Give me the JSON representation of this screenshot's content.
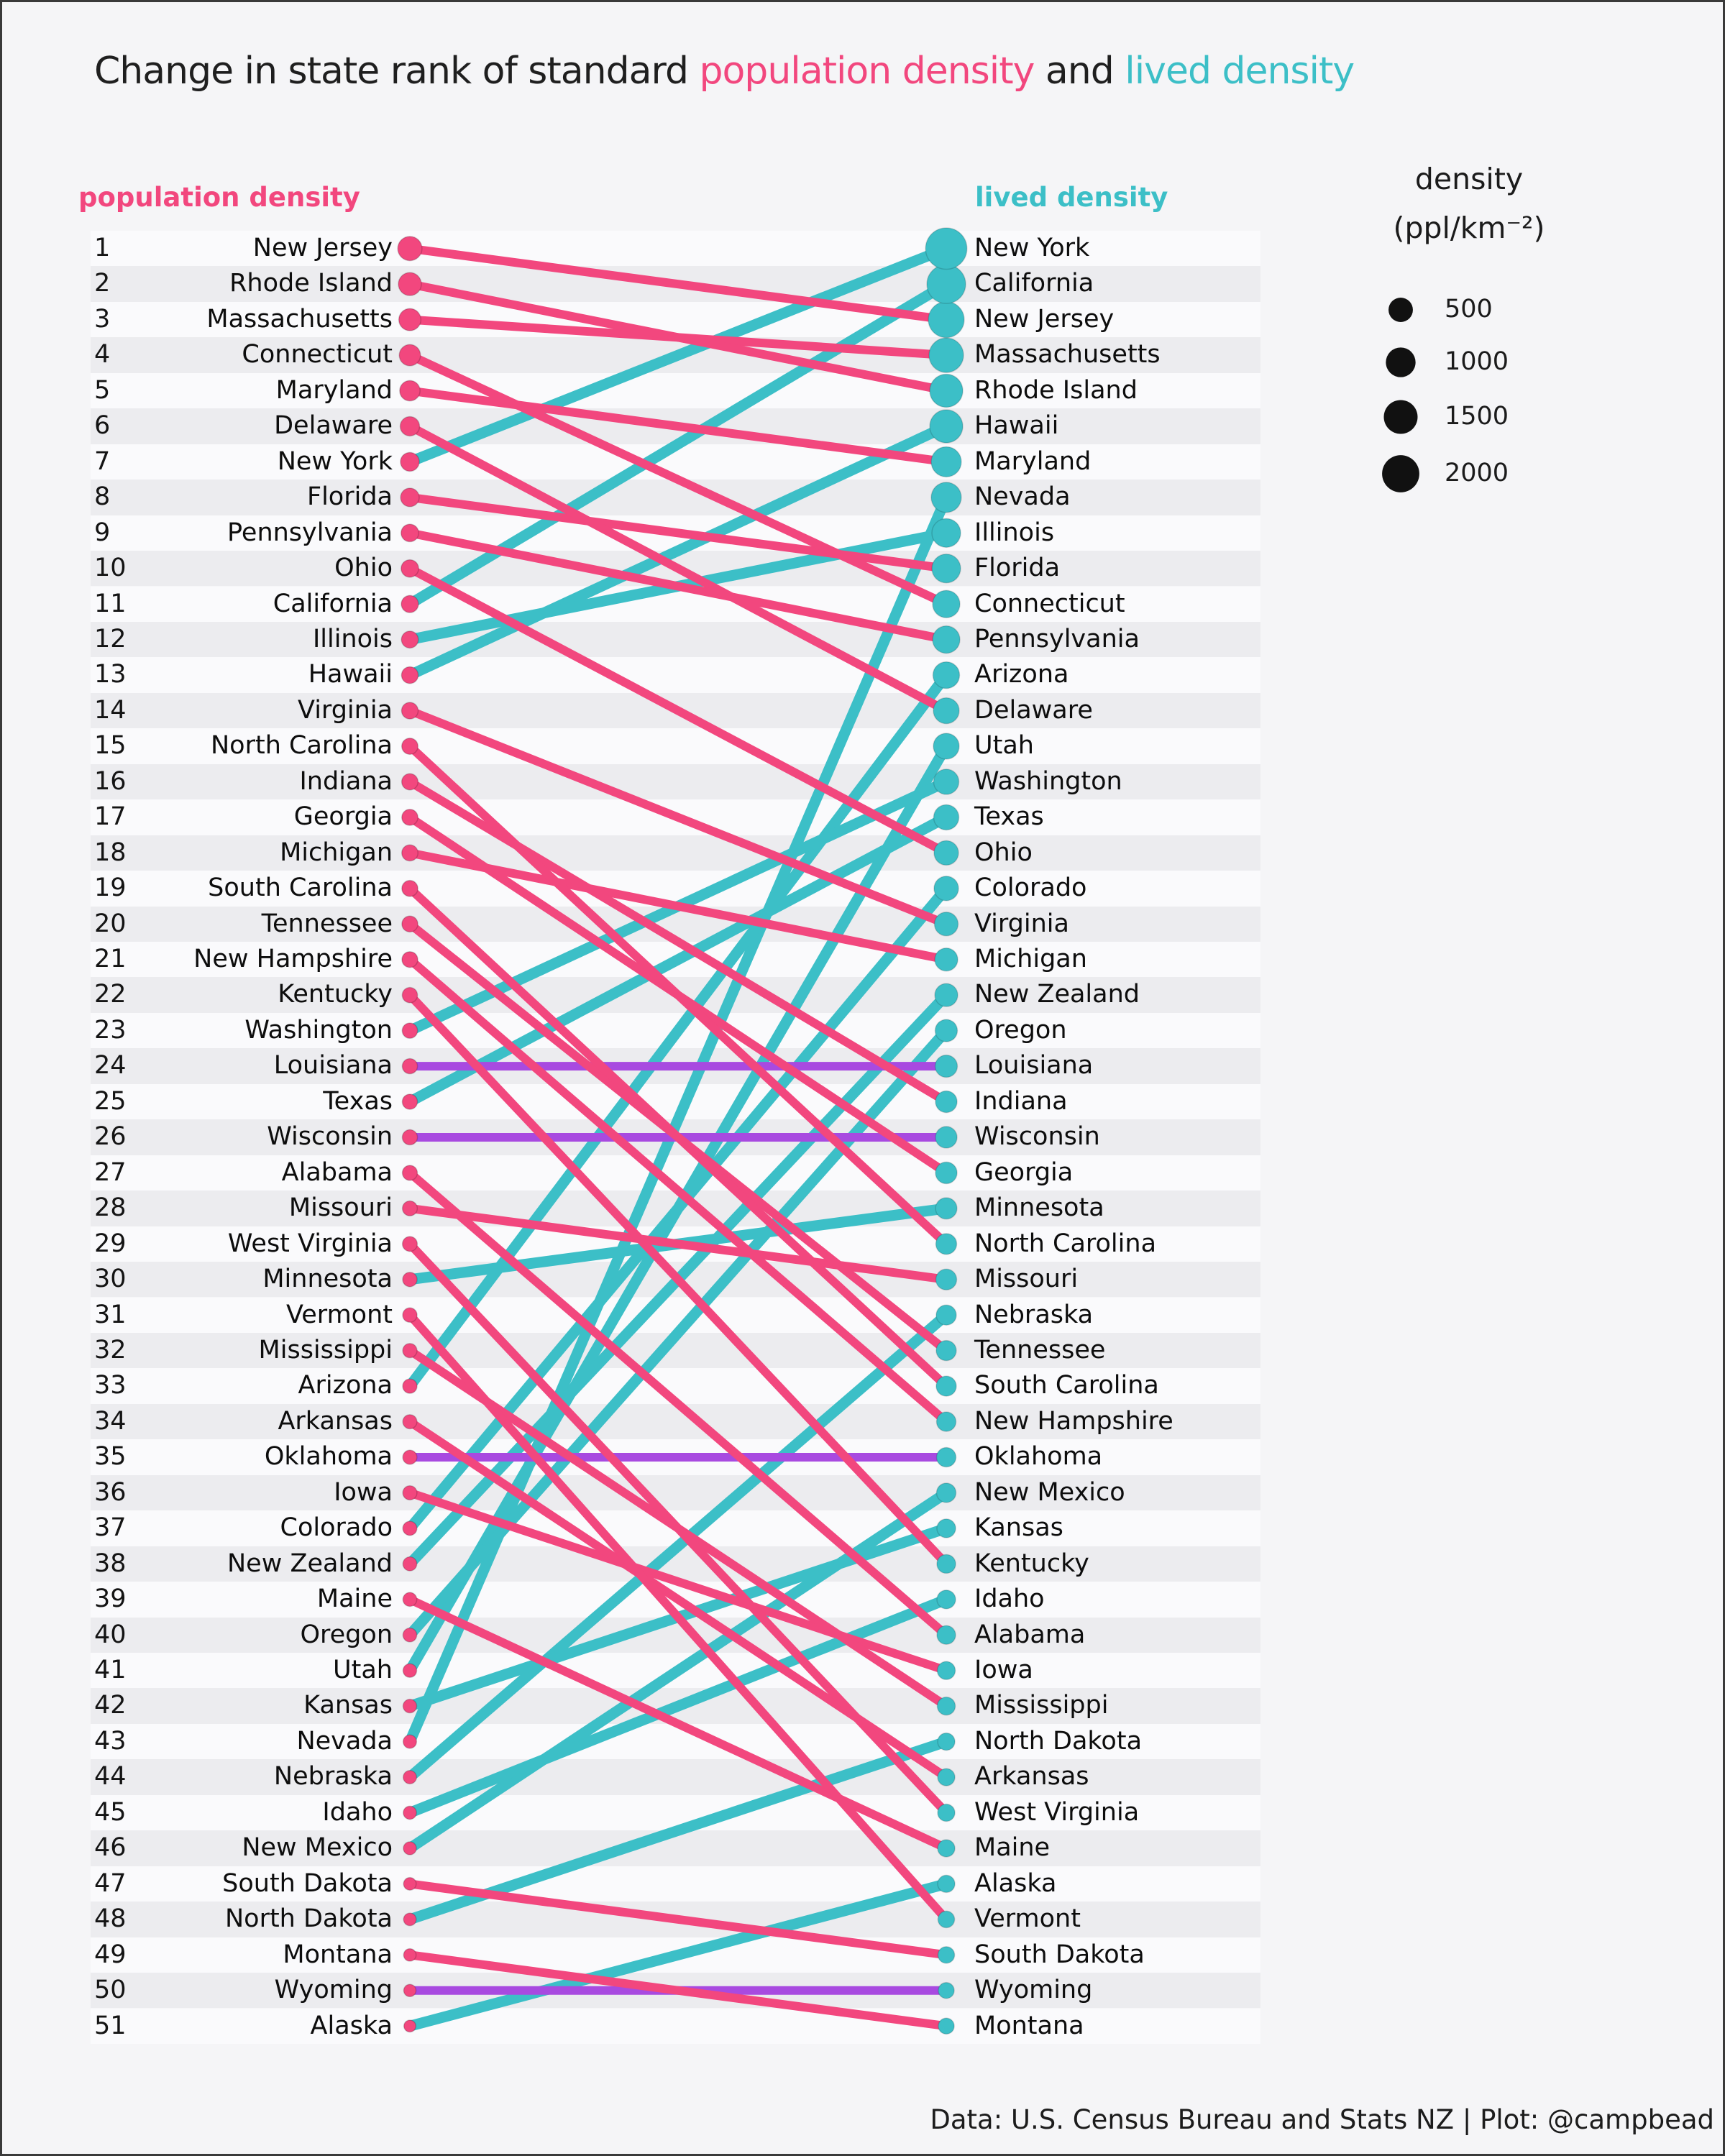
{
  "title": {
    "prefix": "Change in state rank of standard ",
    "pop_words": "population density",
    "middle": " and ",
    "lived_words": "lived density"
  },
  "columns": {
    "left_header": "population density",
    "right_header": "lived density"
  },
  "legend": {
    "title": "density",
    "unit": "(ppl/km⁻²)",
    "sizes": [
      500,
      1000,
      1500,
      2000
    ]
  },
  "footer": "Data: U.S. Census Bureau and Stats NZ | Plot: @campbead",
  "colors": {
    "pink": "#f2477e",
    "teal": "#3cbfc7",
    "purple": "#a84ae0",
    "dot_black": "#111111",
    "band_light": "#fafafc",
    "band_dark": "#ececef",
    "background": "#f5f5f7"
  },
  "chart_data": {
    "type": "slope-rank",
    "title": "Change in state rank of standard population density and lived density",
    "left_axis": "population density rank (1-51)",
    "right_axis": "lived density rank (1-51)",
    "size_encoding": "marker area ~ density (ppl/km⁻²), legend sizes 500/1000/1500/2000",
    "color_encoding": {
      "improved_rank": "teal",
      "worsened_rank": "pink",
      "unchanged_rank": "purple"
    },
    "states": [
      {
        "name": "New Jersey",
        "pop_rank": 1,
        "lived_rank": 3,
        "pop_density": 490,
        "lived_density": 1800
      },
      {
        "name": "Rhode Island",
        "pop_rank": 2,
        "lived_rank": 5,
        "pop_density": 400,
        "lived_density": 1400
      },
      {
        "name": "Massachusetts",
        "pop_rank": 3,
        "lived_rank": 4,
        "pop_density": 340,
        "lived_density": 1600
      },
      {
        "name": "Connecticut",
        "pop_rank": 4,
        "lived_rank": 11,
        "pop_density": 288,
        "lived_density": 760
      },
      {
        "name": "Maryland",
        "pop_rank": 5,
        "lived_rank": 7,
        "pop_density": 238,
        "lived_density": 1050
      },
      {
        "name": "Delaware",
        "pop_rank": 6,
        "lived_rank": 14,
        "pop_density": 187,
        "lived_density": 625
      },
      {
        "name": "New York",
        "pop_rank": 7,
        "lived_rank": 1,
        "pop_density": 161,
        "lived_density": 2700
      },
      {
        "name": "Florida",
        "pop_rank": 8,
        "lived_rank": 10,
        "pop_density": 152,
        "lived_density": 900
      },
      {
        "name": "Pennsylvania",
        "pop_rank": 9,
        "lived_rank": 12,
        "pop_density": 112,
        "lived_density": 760
      },
      {
        "name": "Ohio",
        "pop_rank": 10,
        "lived_rank": 18,
        "pop_density": 109,
        "lived_density": 510
      },
      {
        "name": "California",
        "pop_rank": 11,
        "lived_rank": 2,
        "pop_density": 97,
        "lived_density": 2250
      },
      {
        "name": "Illinois",
        "pop_rank": 12,
        "lived_rank": 9,
        "pop_density": 89,
        "lived_density": 900
      },
      {
        "name": "Hawaii",
        "pop_rank": 13,
        "lived_rank": 6,
        "pop_density": 82,
        "lived_density": 1400
      },
      {
        "name": "Virginia",
        "pop_rank": 14,
        "lived_rank": 20,
        "pop_density": 79,
        "lived_density": 450
      },
      {
        "name": "North Carolina",
        "pop_rank": 15,
        "lived_rank": 29,
        "pop_density": 68,
        "lived_density": 265
      },
      {
        "name": "Indiana",
        "pop_rank": 16,
        "lived_rank": 25,
        "pop_density": 70,
        "lived_density": 310
      },
      {
        "name": "Georgia",
        "pop_rank": 17,
        "lived_rank": 27,
        "pop_density": 65,
        "lived_density": 310
      },
      {
        "name": "Michigan",
        "pop_rank": 18,
        "lived_rank": 21,
        "pop_density": 67,
        "lived_density": 400
      },
      {
        "name": "South Carolina",
        "pop_rank": 19,
        "lived_rank": 33,
        "pop_density": 62,
        "lived_density": 225
      },
      {
        "name": "Tennessee",
        "pop_rank": 20,
        "lived_rank": 32,
        "pop_density": 61,
        "lived_density": 225
      },
      {
        "name": "New Hampshire",
        "pop_rank": 21,
        "lived_rank": 34,
        "pop_density": 57,
        "lived_density": 190
      },
      {
        "name": "Kentucky",
        "pop_rank": 22,
        "lived_rank": 38,
        "pop_density": 44,
        "lived_density": 160
      },
      {
        "name": "Washington",
        "pop_rank": 23,
        "lived_rank": 16,
        "pop_density": 45,
        "lived_density": 570
      },
      {
        "name": "Louisiana",
        "pop_rank": 24,
        "lived_rank": 24,
        "pop_density": 42,
        "lived_density": 350
      },
      {
        "name": "Texas",
        "pop_rank": 25,
        "lived_rank": 17,
        "pop_density": 41,
        "lived_density": 570
      },
      {
        "name": "Wisconsin",
        "pop_rank": 26,
        "lived_rank": 26,
        "pop_density": 41,
        "lived_density": 310
      },
      {
        "name": "Alabama",
        "pop_rank": 27,
        "lived_rank": 40,
        "pop_density": 38,
        "lived_density": 156
      },
      {
        "name": "Missouri",
        "pop_rank": 28,
        "lived_rank": 30,
        "pop_density": 35,
        "lived_density": 265
      },
      {
        "name": "West Virginia",
        "pop_rank": 29,
        "lived_rank": 45,
        "pop_density": 35,
        "lived_density": 100
      },
      {
        "name": "Minnesota",
        "pop_rank": 30,
        "lived_rank": 28,
        "pop_density": 26,
        "lived_density": 300
      },
      {
        "name": "Vermont",
        "pop_rank": 31,
        "lived_rank": 48,
        "pop_density": 26,
        "lived_density": 80
      },
      {
        "name": "Mississippi",
        "pop_rank": 32,
        "lived_rank": 42,
        "pop_density": 24,
        "lived_density": 130
      },
      {
        "name": "Arizona",
        "pop_rank": 33,
        "lived_rank": 13,
        "pop_density": 25,
        "lived_density": 690
      },
      {
        "name": "Arkansas",
        "pop_rank": 34,
        "lived_rank": 44,
        "pop_density": 22,
        "lived_density": 100
      },
      {
        "name": "Oklahoma",
        "pop_rank": 35,
        "lived_rank": 35,
        "pop_density": 22,
        "lived_density": 190
      },
      {
        "name": "Iowa",
        "pop_rank": 36,
        "lived_rank": 41,
        "pop_density": 22,
        "lived_density": 130
      },
      {
        "name": "Colorado",
        "pop_rank": 37,
        "lived_rank": 19,
        "pop_density": 21,
        "lived_density": 510
      },
      {
        "name": "New Zealand",
        "pop_rank": 38,
        "lived_rank": 22,
        "pop_density": 18,
        "lived_density": 400
      },
      {
        "name": "Maine",
        "pop_rank": 39,
        "lived_rank": 46,
        "pop_density": 17,
        "lived_density": 100
      },
      {
        "name": "Oregon",
        "pop_rank": 40,
        "lived_rank": 23,
        "pop_density": 17,
        "lived_density": 350
      },
      {
        "name": "Utah",
        "pop_rank": 41,
        "lived_rank": 15,
        "pop_density": 14,
        "lived_density": 625
      },
      {
        "name": "Kansas",
        "pop_rank": 42,
        "lived_rank": 37,
        "pop_density": 14,
        "lived_density": 160
      },
      {
        "name": "Nevada",
        "pop_rank": 43,
        "lived_rank": 8,
        "pop_density": 11,
        "lived_density": 1050
      },
      {
        "name": "Nebraska",
        "pop_rank": 44,
        "lived_rank": 31,
        "pop_density": 10,
        "lived_density": 225
      },
      {
        "name": "Idaho",
        "pop_rank": 45,
        "lived_rank": 39,
        "pop_density": 9,
        "lived_density": 156
      },
      {
        "name": "New Mexico",
        "pop_rank": 46,
        "lived_rank": 36,
        "pop_density": 7,
        "lived_density": 190
      },
      {
        "name": "South Dakota",
        "pop_rank": 47,
        "lived_rank": 49,
        "pop_density": 4,
        "lived_density": 80
      },
      {
        "name": "North Dakota",
        "pop_rank": 48,
        "lived_rank": 43,
        "pop_density": 4,
        "lived_density": 100
      },
      {
        "name": "Montana",
        "pop_rank": 49,
        "lived_rank": 51,
        "pop_density": 3,
        "lived_density": 60
      },
      {
        "name": "Wyoming",
        "pop_rank": 50,
        "lived_rank": 50,
        "pop_density": 2,
        "lived_density": 60
      },
      {
        "name": "Alaska",
        "pop_rank": 51,
        "lived_rank": 47,
        "pop_density": 0.5,
        "lived_density": 100
      }
    ]
  }
}
